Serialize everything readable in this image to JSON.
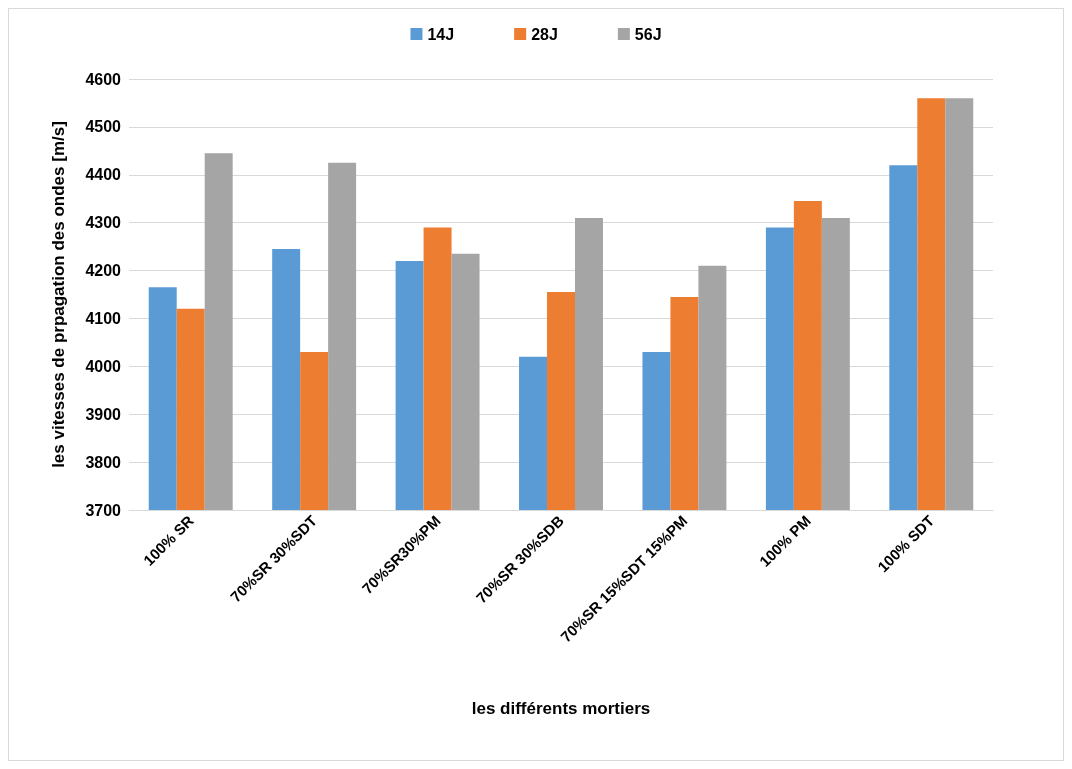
{
  "chart_data": {
    "type": "bar",
    "xlabel": "les différents mortiers",
    "ylabel": "les vitesses de prpagation des ondes [m/s]",
    "categories": [
      "100% SR",
      "70%SR 30%SDT",
      "70%SR30%PM",
      "70%SR 30%SDB",
      "70%SR 15%SDT 15%PM",
      "100% PM",
      "100% SDT"
    ],
    "series": [
      {
        "name": "14J",
        "color": "#5b9bd5",
        "values": [
          4165,
          4245,
          4220,
          4020,
          4030,
          4290,
          4420
        ]
      },
      {
        "name": "28J",
        "color": "#ed7d31",
        "values": [
          4120,
          4030,
          4290,
          4155,
          4145,
          4345,
          4560
        ]
      },
      {
        "name": "56J",
        "color": "#a5a5a5",
        "values": [
          4445,
          4425,
          4235,
          4310,
          4210,
          4310,
          4560
        ]
      }
    ],
    "ylim": [
      3700,
      4600
    ],
    "yticks": [
      3700,
      3800,
      3900,
      4000,
      4100,
      4200,
      4300,
      4400,
      4500,
      4600
    ],
    "grid": "y",
    "legend": "top"
  }
}
